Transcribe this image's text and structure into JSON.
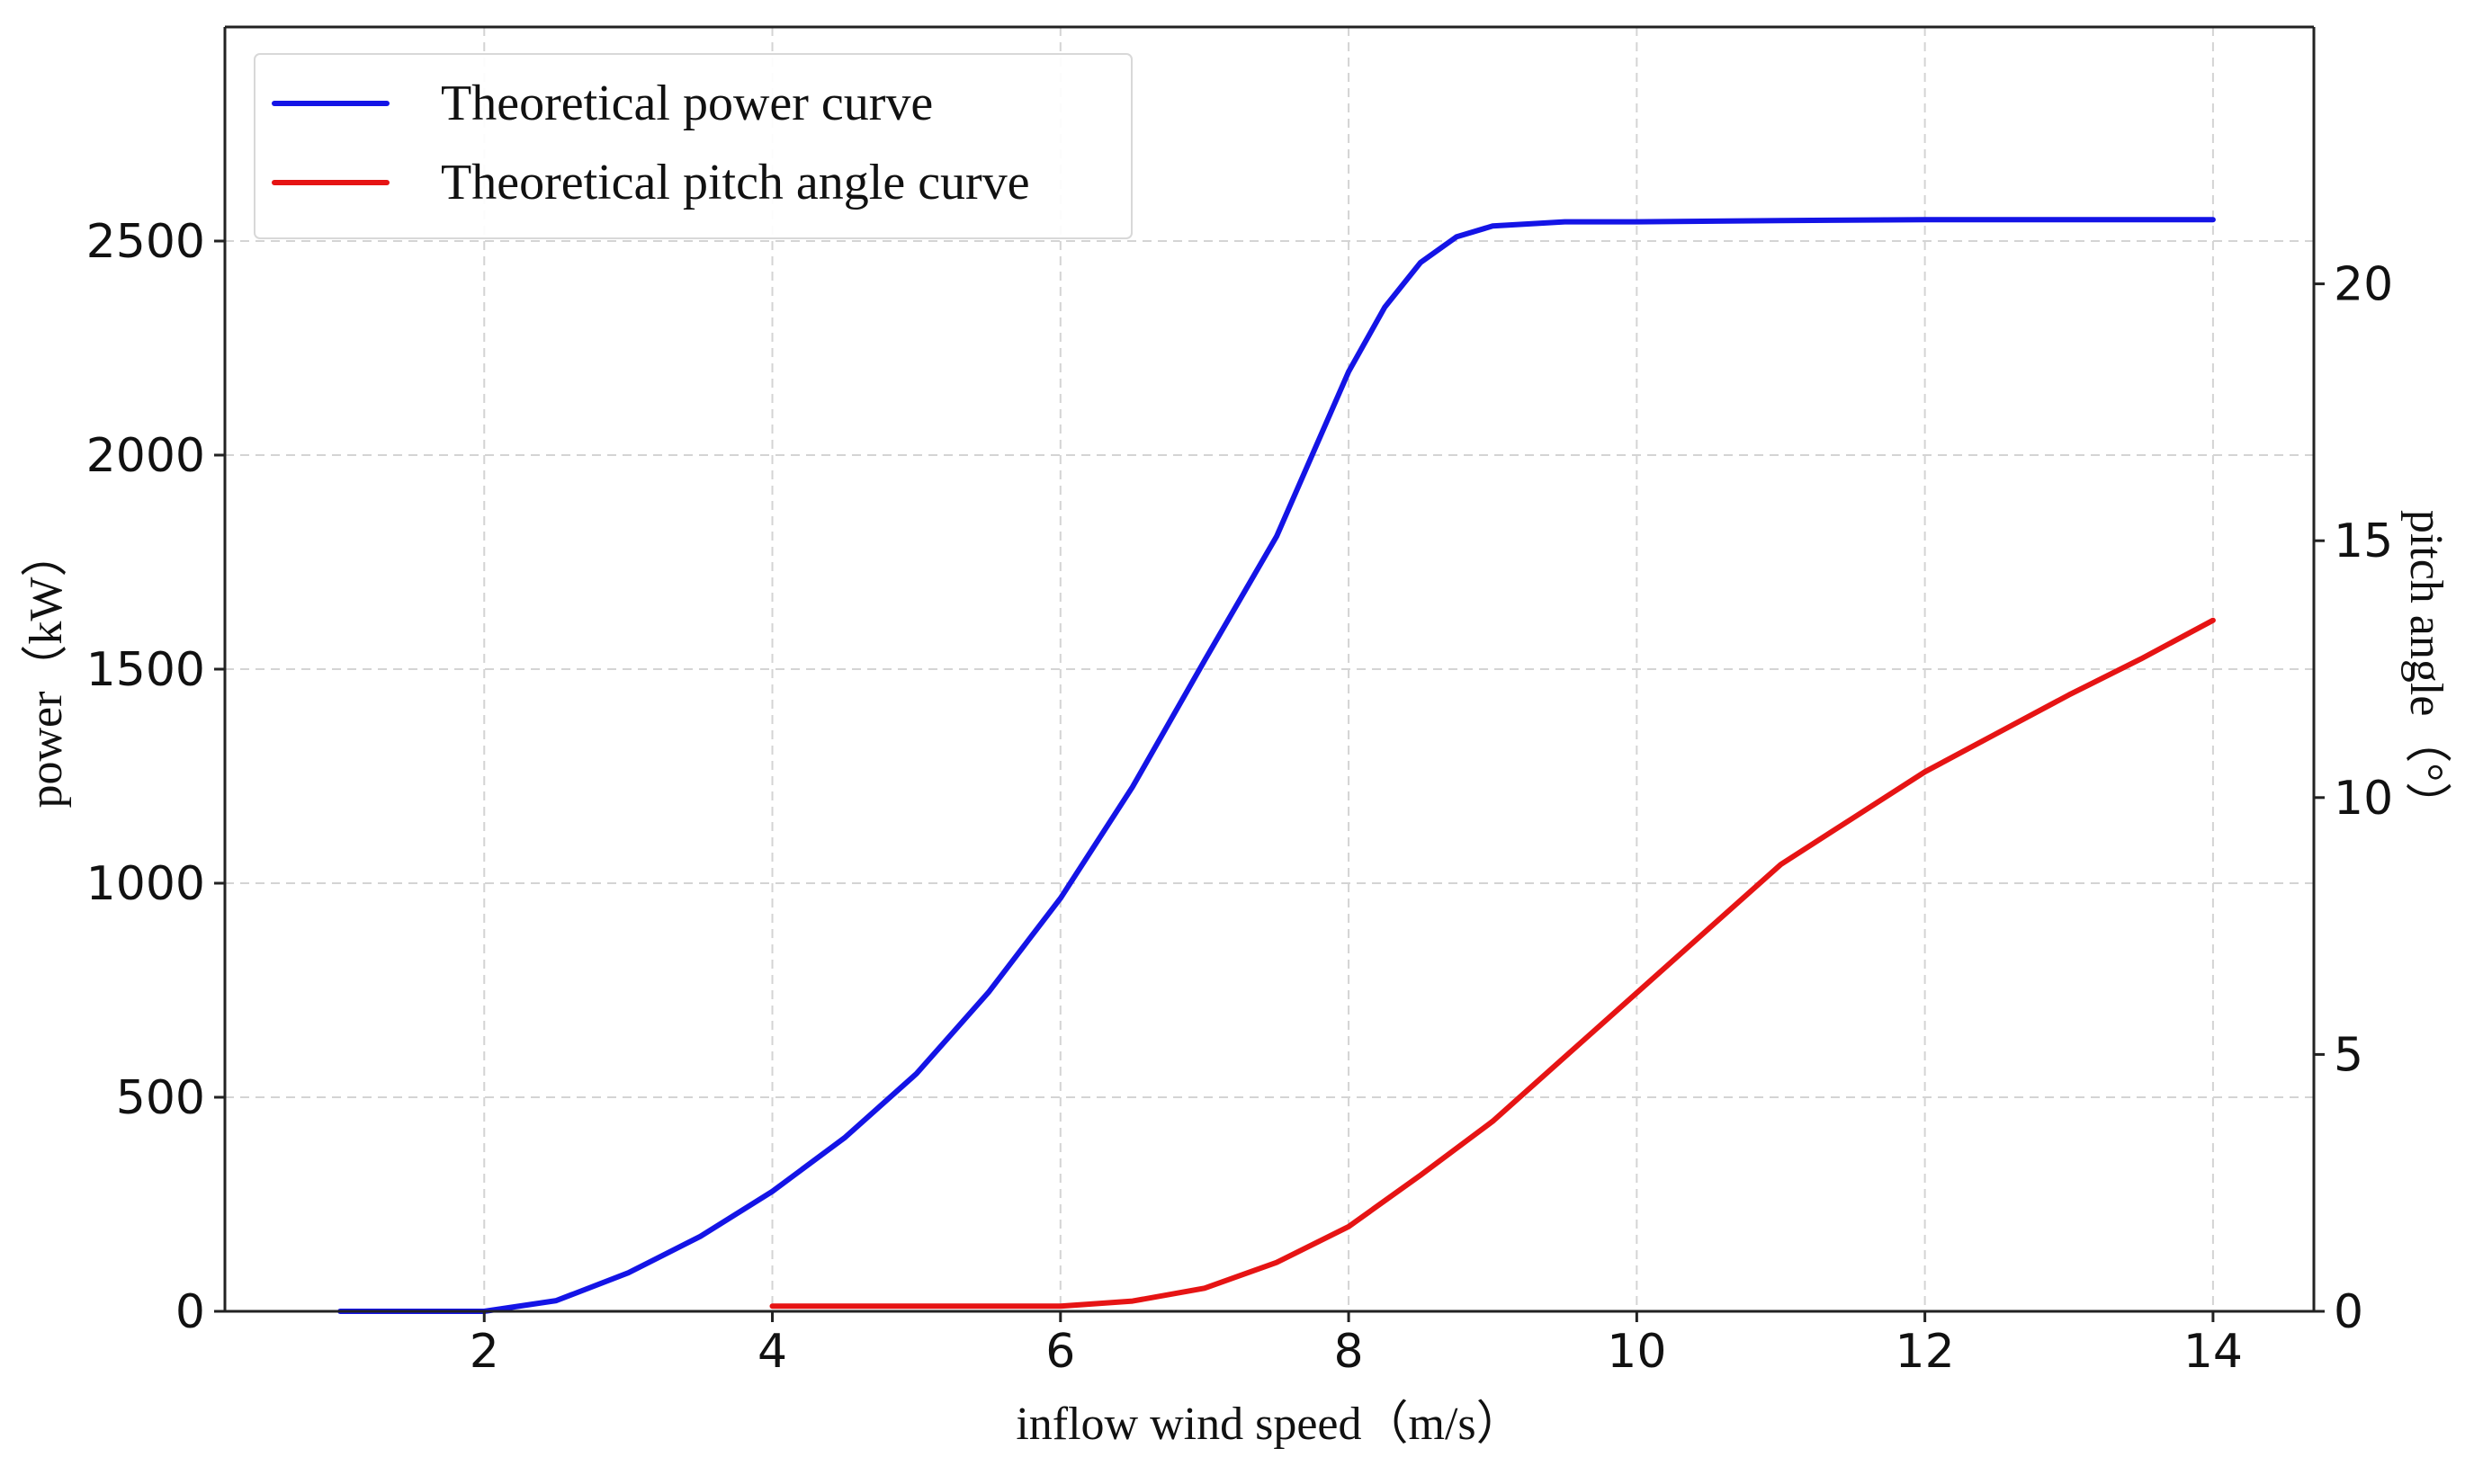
{
  "chart_data": {
    "type": "line",
    "xlabel": "inflow wind speed（m/s）",
    "ylabel_left": "power（kW）",
    "ylabel_right": "pitch angle（°）",
    "xlim": [
      0.2,
      14.7
    ],
    "ylim_left": [
      0,
      3000
    ],
    "ylim_right": [
      0,
      25
    ],
    "xticks": [
      2,
      4,
      6,
      8,
      10,
      12,
      14
    ],
    "yticks_left": [
      0,
      500,
      1000,
      1500,
      2000,
      2500
    ],
    "yticks_right": [
      0,
      5,
      10,
      15,
      20
    ],
    "grid": true,
    "legend_position": "top-left",
    "series": [
      {
        "name": "Theoretical power curve",
        "axis": "left",
        "color": "#1414e6",
        "x": [
          1,
          1.5,
          2,
          2.5,
          3,
          3.5,
          4,
          4.5,
          5,
          5.5,
          6,
          6.5,
          7,
          7.5,
          8,
          8.25,
          8.5,
          8.75,
          9,
          9.5,
          10,
          11,
          12,
          13,
          14
        ],
        "y": [
          0,
          0,
          0,
          25,
          90,
          175,
          280,
          405,
          555,
          745,
          965,
          1225,
          1520,
          1810,
          2195,
          2345,
          2450,
          2510,
          2535,
          2545,
          2545,
          2548,
          2550,
          2550,
          2550
        ]
      },
      {
        "name": "Theoretical pitch angle curve",
        "axis": "right",
        "color": "#e61414",
        "x": [
          4,
          4.5,
          5,
          5.5,
          6,
          6.5,
          7,
          7.5,
          8,
          8.5,
          9,
          9.5,
          10,
          10.5,
          11,
          11.5,
          12,
          12.5,
          13,
          13.5,
          14
        ],
        "y": [
          0.1,
          0.1,
          0.1,
          0.1,
          0.1,
          0.2,
          0.45,
          0.95,
          1.65,
          2.65,
          3.7,
          4.95,
          6.2,
          7.45,
          8.7,
          9.6,
          10.5,
          11.25,
          12,
          12.7,
          13.45
        ]
      }
    ]
  }
}
